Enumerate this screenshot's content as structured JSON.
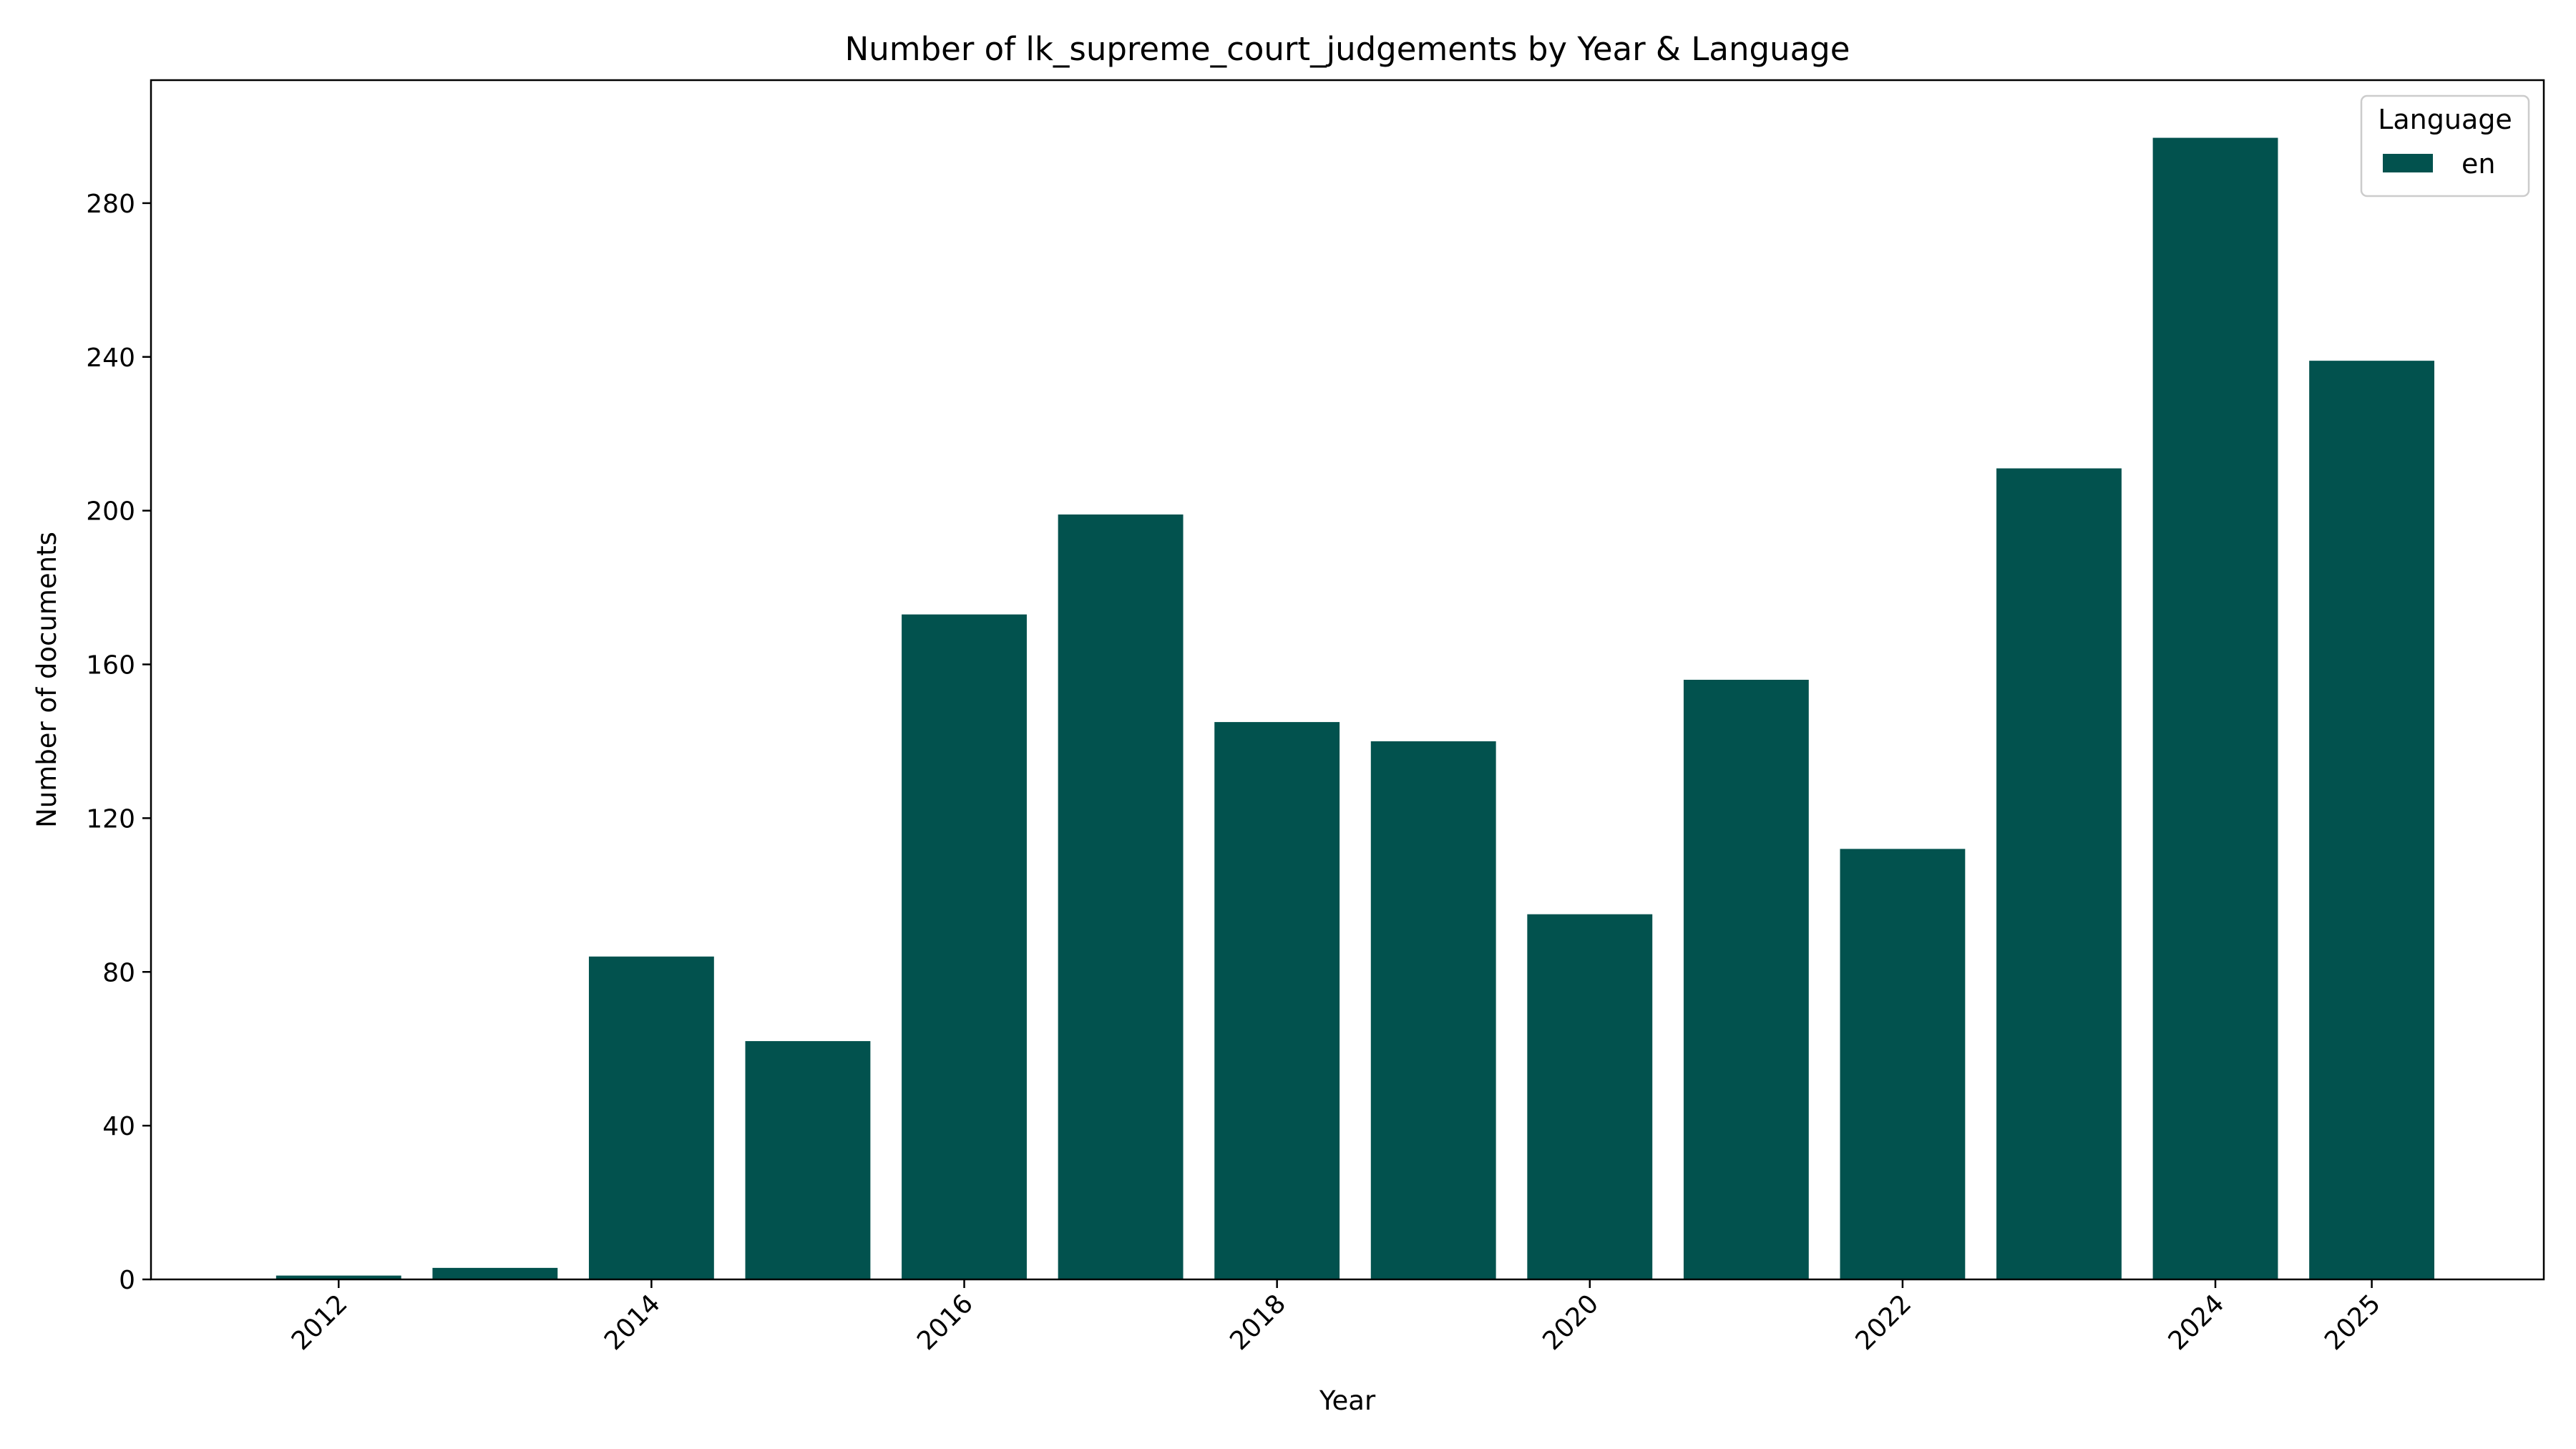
{
  "chart_data": {
    "type": "bar",
    "title": "Number of lk_supreme_court_judgements by Year & Language",
    "xlabel": "Year",
    "ylabel": "Number of documents",
    "categories": [
      "2012",
      "2013",
      "2014",
      "2015",
      "2016",
      "2017",
      "2018",
      "2019",
      "2020",
      "2021",
      "2022",
      "2023",
      "2024",
      "2025"
    ],
    "x_ticks": [
      "2012",
      "2014",
      "2016",
      "2018",
      "2020",
      "2022",
      "2024",
      "2025"
    ],
    "y_ticks": [
      0,
      40,
      80,
      120,
      160,
      200,
      240,
      280
    ],
    "ylim": [
      0,
      312
    ],
    "series": [
      {
        "name": "en",
        "values": [
          1,
          3,
          84,
          62,
          173,
          199,
          145,
          140,
          95,
          156,
          112,
          211,
          297,
          239
        ],
        "color": "#02524e"
      }
    ],
    "legend": {
      "title": "Language",
      "placement": "top-right"
    },
    "grid": false
  }
}
